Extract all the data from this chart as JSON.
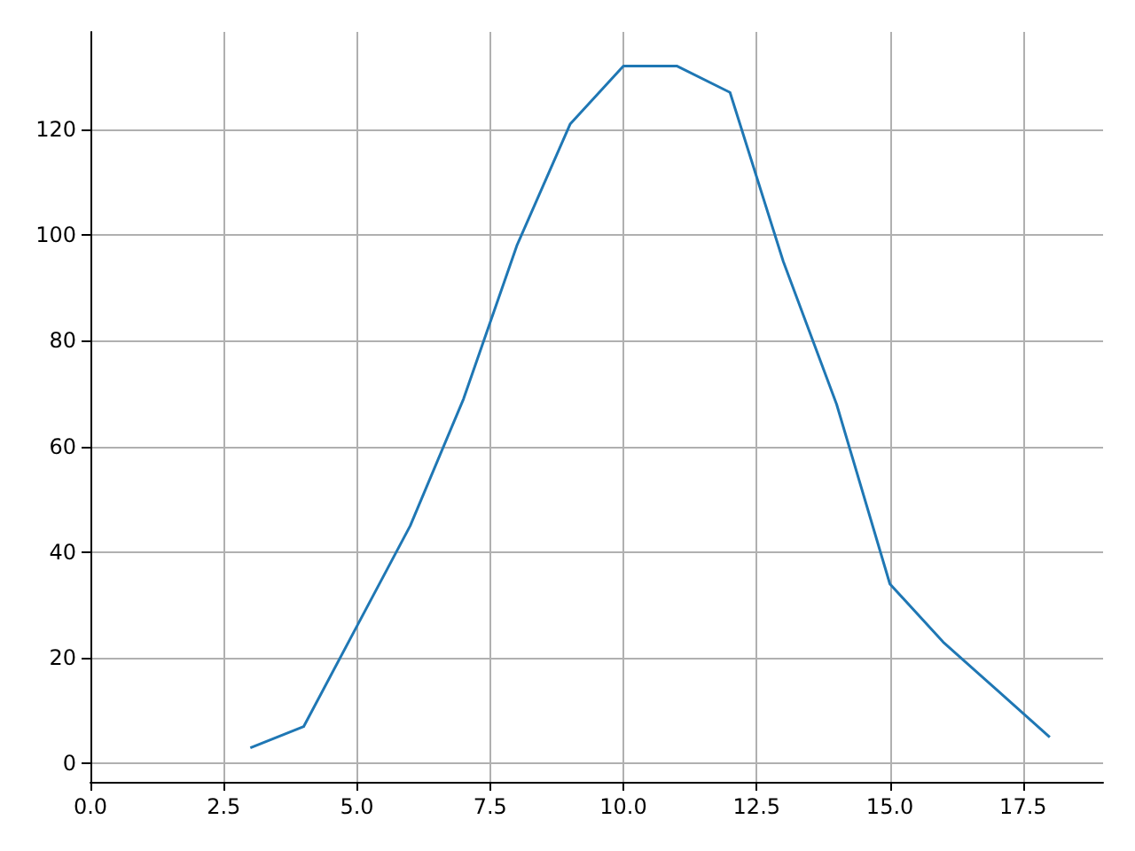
{
  "chart_data": {
    "type": "line",
    "x": [
      3,
      4,
      5,
      6,
      7,
      8,
      9,
      10,
      11,
      12,
      13,
      14,
      15,
      16,
      17,
      18
    ],
    "series": [
      {
        "color": "#1f77b4",
        "values": [
          3,
          7,
          26,
          45,
          69,
          98,
          121,
          132,
          132,
          127,
          95,
          68,
          34,
          23,
          14,
          5
        ]
      }
    ],
    "xlim": [
      0,
      19
    ],
    "xticks": [
      {
        "value": 0,
        "label": "0.0"
      },
      {
        "value": 2.5,
        "label": "2.5"
      },
      {
        "value": 5,
        "label": "5.0"
      },
      {
        "value": 7.5,
        "label": "7.5"
      },
      {
        "value": 10,
        "label": "10.0"
      },
      {
        "value": 12.5,
        "label": "12.5"
      },
      {
        "value": 15,
        "label": "15.0"
      },
      {
        "value": 17.5,
        "label": "17.5"
      }
    ],
    "ylim": [
      -3.45,
      138.45
    ],
    "yticks": [
      0,
      20,
      40,
      60,
      80,
      100,
      120
    ],
    "grid": true,
    "marker": "none",
    "line_style": "solid"
  }
}
